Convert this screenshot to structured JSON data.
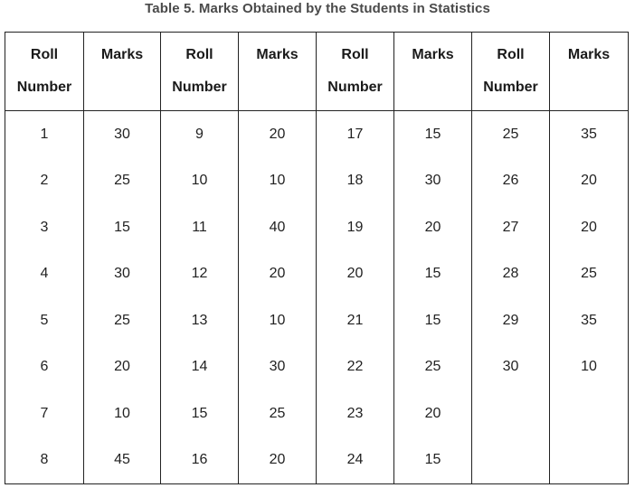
{
  "caption": "Table 5. Marks Obtained by the Students in Statistics",
  "headers": [
    [
      "Roll",
      "Number"
    ],
    [
      "Marks",
      ""
    ],
    [
      "Roll",
      "Number"
    ],
    [
      "Marks",
      ""
    ],
    [
      "Roll",
      "Number"
    ],
    [
      "Marks",
      ""
    ],
    [
      "Roll",
      "Number"
    ],
    [
      "Marks",
      ""
    ]
  ],
  "rows": [
    [
      "1",
      "30",
      "9",
      "20",
      "17",
      "15",
      "25",
      "35"
    ],
    [
      "2",
      "25",
      "10",
      "10",
      "18",
      "30",
      "26",
      "20"
    ],
    [
      "3",
      "15",
      "11",
      "40",
      "19",
      "20",
      "27",
      "20"
    ],
    [
      "4",
      "30",
      "12",
      "20",
      "20",
      "15",
      "28",
      "25"
    ],
    [
      "5",
      "25",
      "13",
      "10",
      "21",
      "15",
      "29",
      "35"
    ],
    [
      "6",
      "20",
      "14",
      "30",
      "22",
      "25",
      "30",
      "10"
    ],
    [
      "7",
      "10",
      "15",
      "25",
      "23",
      "20",
      "",
      ""
    ],
    [
      "8",
      "45",
      "16",
      "20",
      "24",
      "15",
      "",
      ""
    ]
  ]
}
